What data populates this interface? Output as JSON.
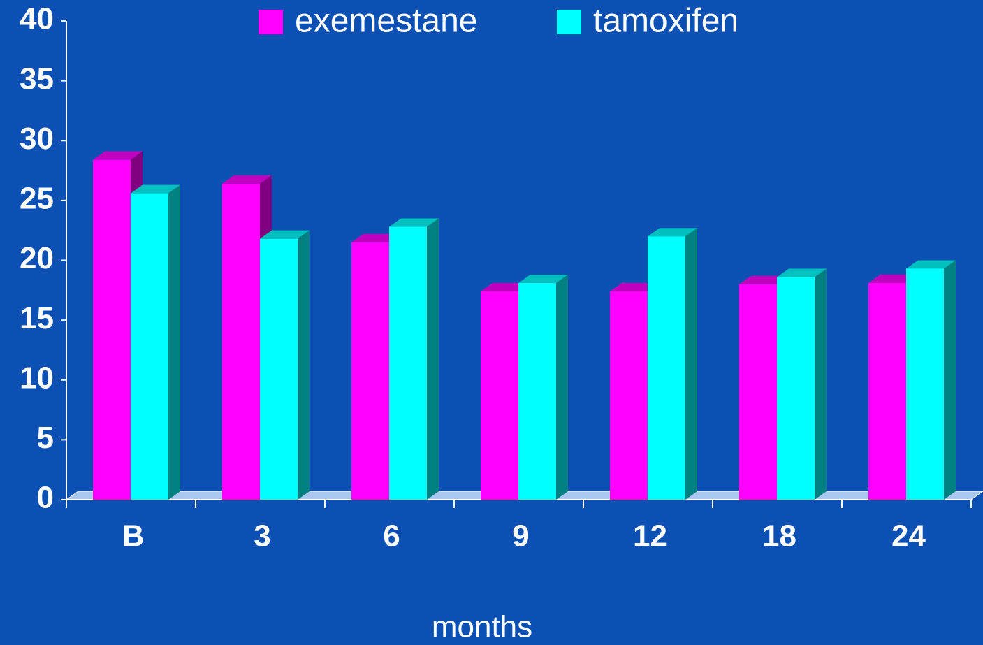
{
  "chart_data": {
    "type": "bar",
    "categories": [
      "B",
      "3",
      "6",
      "9",
      "12",
      "18",
      "24"
    ],
    "series": [
      {
        "name": "exemestane",
        "color": "#ff00ff",
        "values": [
          28.4,
          26.4,
          21.5,
          17.4,
          17.4,
          18.0,
          18.1
        ]
      },
      {
        "name": "tamoxifen",
        "color": "#00ffff",
        "values": [
          25.6,
          21.8,
          22.8,
          18.1,
          22.0,
          18.6,
          19.3
        ]
      }
    ],
    "xlabel": "months",
    "ylim": [
      0,
      40
    ],
    "yticks": [
      0,
      5,
      10,
      15,
      20,
      25,
      30,
      35,
      40
    ],
    "legend": "top"
  }
}
